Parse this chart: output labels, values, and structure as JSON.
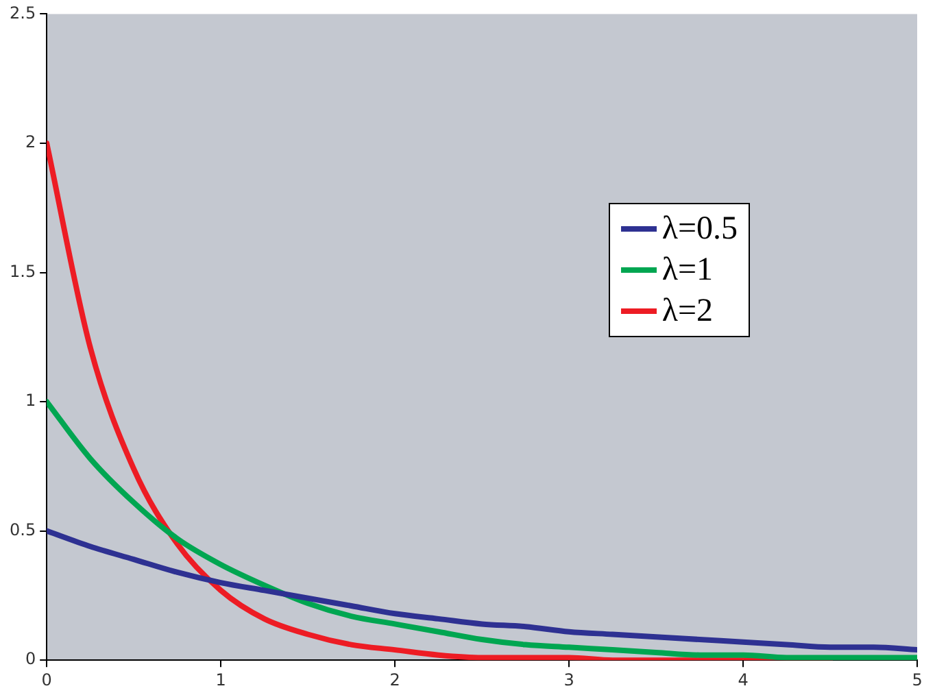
{
  "chart_data": {
    "type": "line",
    "x": [
      0,
      0.25,
      0.5,
      0.75,
      1,
      1.25,
      1.5,
      1.75,
      2,
      2.25,
      2.5,
      2.75,
      3,
      3.25,
      3.5,
      3.75,
      4,
      4.25,
      4.5,
      4.75,
      5
    ],
    "series": [
      {
        "name": "λ=0.5",
        "color": "#2e3192",
        "values": [
          0.5,
          0.44,
          0.39,
          0.34,
          0.3,
          0.27,
          0.24,
          0.21,
          0.18,
          0.16,
          0.14,
          0.13,
          0.11,
          0.1,
          0.09,
          0.08,
          0.07,
          0.06,
          0.05,
          0.05,
          0.04
        ]
      },
      {
        "name": "λ=1",
        "color": "#00a651",
        "values": [
          1,
          0.78,
          0.61,
          0.47,
          0.37,
          0.29,
          0.22,
          0.17,
          0.14,
          0.11,
          0.08,
          0.06,
          0.05,
          0.04,
          0.03,
          0.02,
          0.02,
          0.01,
          0.01,
          0.01,
          0.01
        ]
      },
      {
        "name": "λ=2",
        "color": "#ed1c24",
        "values": [
          2,
          1.21,
          0.74,
          0.45,
          0.27,
          0.16,
          0.1,
          0.06,
          0.04,
          0.02,
          0.01,
          0.01,
          0.01,
          0,
          0,
          0,
          0,
          0,
          0,
          null,
          null
        ]
      }
    ],
    "xlim": [
      0,
      5
    ],
    "xticks": [
      0,
      1,
      2,
      3,
      4,
      5
    ],
    "ylim": [
      0,
      2.5
    ],
    "yticks": [
      0,
      0.5,
      1,
      1.5,
      2,
      2.5
    ],
    "grid": false,
    "legend": "right",
    "marker": "none",
    "line_style": "solid"
  }
}
